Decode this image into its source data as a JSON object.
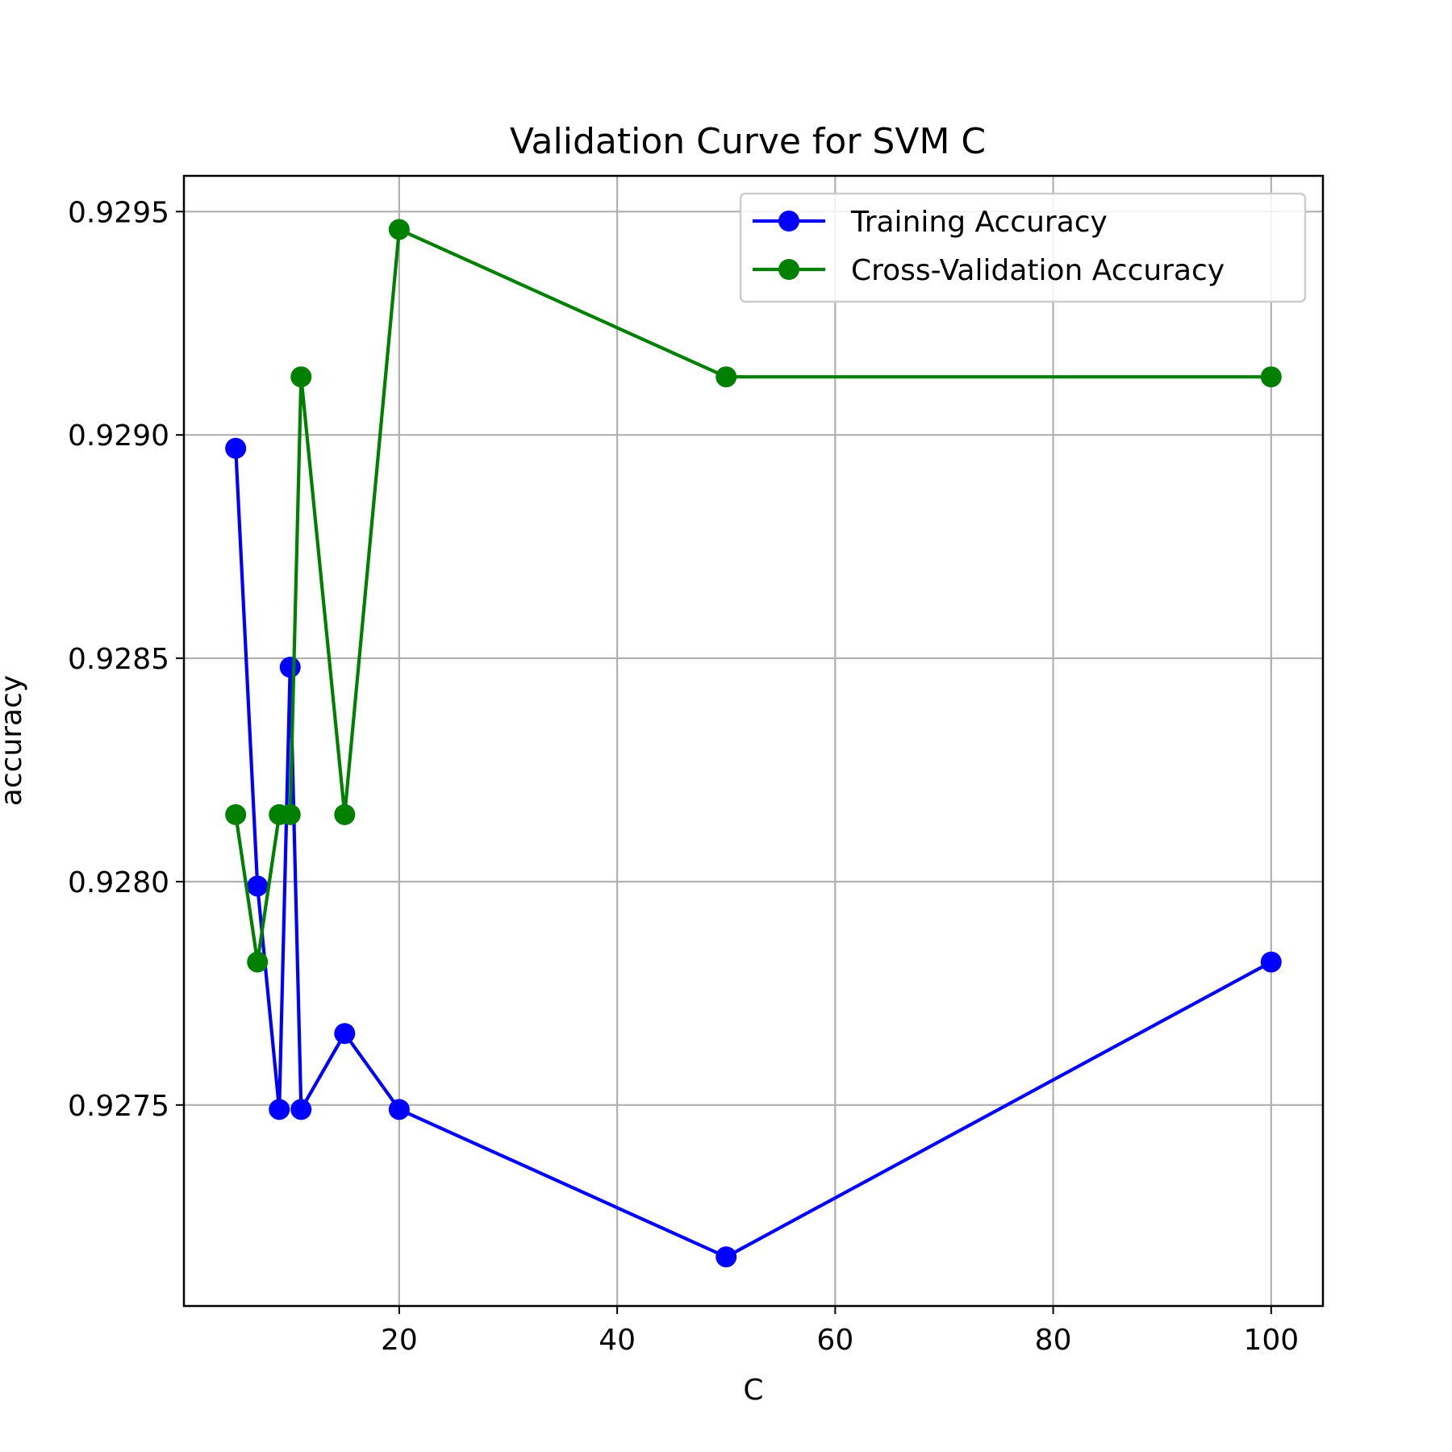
{
  "chart_data": {
    "type": "line",
    "title": "Validation Curve for SVM C",
    "xlabel": "C",
    "ylabel": "accuracy",
    "x": [
      5,
      7,
      9,
      10,
      11,
      15,
      20,
      50,
      100
    ],
    "series": [
      {
        "name": "Training Accuracy",
        "color": "#0000ff",
        "values": [
          0.92897,
          0.92799,
          0.92749,
          0.92848,
          0.92749,
          0.92766,
          0.92749,
          0.92716,
          0.92782
        ]
      },
      {
        "name": "Cross-Validation Accuracy",
        "color": "#008000",
        "values": [
          0.92815,
          0.92782,
          0.92815,
          0.92815,
          0.92913,
          0.92815,
          0.92946,
          0.92913,
          0.92913
        ]
      }
    ],
    "xlim": [
      0.25,
      104.75
    ],
    "ylim": [
      0.92705,
      0.92958
    ],
    "xticks": [
      20,
      40,
      60,
      80,
      100
    ],
    "xtick_labels": [
      "20",
      "40",
      "60",
      "80",
      "100"
    ],
    "yticks": [
      0.9275,
      0.928,
      0.9285,
      0.929,
      0.9295
    ],
    "ytick_labels": [
      "0.9275",
      "0.9280",
      "0.9285",
      "0.9290",
      "0.9295"
    ],
    "grid": true,
    "legend_position": "top-right",
    "marker": "circle"
  }
}
